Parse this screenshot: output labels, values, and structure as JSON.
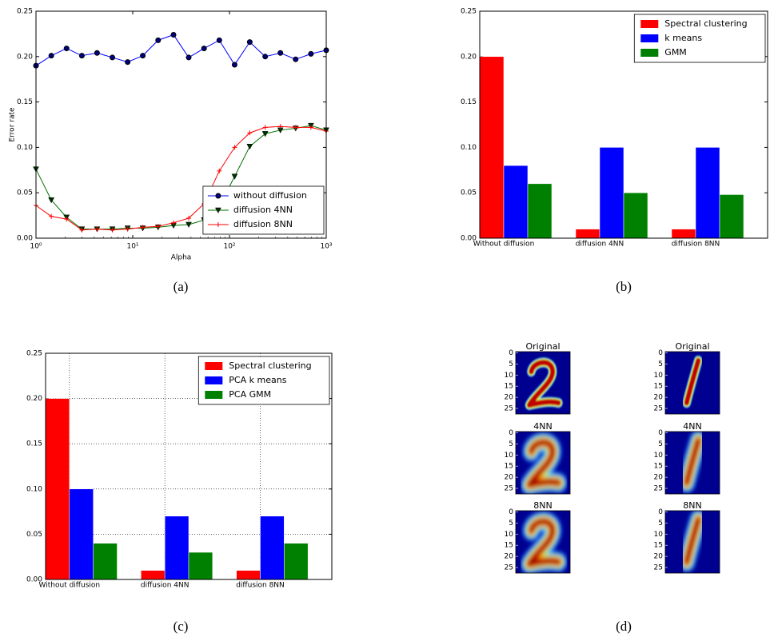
{
  "chart_data": [
    {
      "type": "line",
      "caption": "(a)",
      "x_label": "Alpha",
      "y_label": "Error rate",
      "xlog": true,
      "x": [
        1,
        1.44,
        2.07,
        2.98,
        4.28,
        6.16,
        8.86,
        12.7,
        18.3,
        26.4,
        37.9,
        54.6,
        78.5,
        113,
        162,
        234,
        336,
        483,
        695,
        1000
      ],
      "xlim": [
        1,
        1000
      ],
      "xticks": [
        {
          "value": 1,
          "label": "10⁰"
        },
        {
          "value": 10,
          "label": "10¹"
        },
        {
          "value": 100,
          "label": "10²"
        },
        {
          "value": 1000,
          "label": "10³"
        }
      ],
      "ylim": [
        0,
        0.25
      ],
      "yticks": [
        {
          "value": 0,
          "label": "0.00"
        },
        {
          "value": 0.05,
          "label": "0.05"
        },
        {
          "value": 0.1,
          "label": "0.10"
        },
        {
          "value": 0.15,
          "label": "0.15"
        },
        {
          "value": 0.2,
          "label": "0.20"
        },
        {
          "value": 0.25,
          "label": "0.25"
        }
      ],
      "legend": "lower right",
      "grid": false,
      "series": [
        {
          "name": "without diffusion",
          "color": "#0000ff",
          "marker": "o",
          "values": [
            0.19,
            0.201,
            0.209,
            0.201,
            0.204,
            0.199,
            0.194,
            0.201,
            0.218,
            0.224,
            0.199,
            0.209,
            0.218,
            0.191,
            0.216,
            0.2,
            0.204,
            0.197,
            0.203,
            0.207
          ]
        },
        {
          "name": "diffusion 4NN",
          "color": "#007000",
          "marker": "v",
          "values": [
            0.076,
            0.042,
            0.023,
            0.01,
            0.01,
            0.01,
            0.011,
            0.011,
            0.012,
            0.014,
            0.015,
            0.02,
            0.035,
            0.068,
            0.101,
            0.115,
            0.119,
            0.121,
            0.124,
            0.119
          ]
        },
        {
          "name": "diffusion 8NN",
          "color": "#ff0000",
          "marker": "+",
          "values": [
            0.036,
            0.024,
            0.021,
            0.009,
            0.01,
            0.009,
            0.01,
            0.012,
            0.013,
            0.017,
            0.022,
            0.038,
            0.074,
            0.1,
            0.116,
            0.122,
            0.123,
            0.122,
            0.122,
            0.118
          ]
        }
      ]
    },
    {
      "type": "bar",
      "caption": "(b)",
      "categories": [
        "Without diffusion",
        "diffusion 4NN",
        "diffusion 8NN"
      ],
      "ylim": [
        0,
        0.25
      ],
      "yticks": [
        {
          "value": 0,
          "label": "0.00"
        },
        {
          "value": 0.05,
          "label": "0.05"
        },
        {
          "value": 0.1,
          "label": "0.10"
        },
        {
          "value": 0.15,
          "label": "0.15"
        },
        {
          "value": 0.2,
          "label": "0.20"
        },
        {
          "value": 0.25,
          "label": "0.25"
        }
      ],
      "legend": "upper right",
      "grid": false,
      "series": [
        {
          "name": "Spectral clustering",
          "color": "#ff0000",
          "values": [
            0.2,
            0.01,
            0.01
          ]
        },
        {
          "name": "k means",
          "color": "#0000ff",
          "values": [
            0.08,
            0.1,
            0.1
          ]
        },
        {
          "name": "GMM",
          "color": "#008000",
          "values": [
            0.06,
            0.05,
            0.048
          ]
        }
      ]
    },
    {
      "type": "bar",
      "caption": "(c)",
      "categories": [
        "Without diffusion",
        "diffusion 4NN",
        "diffusion 8NN"
      ],
      "ylim": [
        0,
        0.25
      ],
      "yticks": [
        {
          "value": 0,
          "label": "0.00"
        },
        {
          "value": 0.05,
          "label": "0.05"
        },
        {
          "value": 0.1,
          "label": "0.10"
        },
        {
          "value": 0.15,
          "label": "0.15"
        },
        {
          "value": 0.2,
          "label": "0.20"
        },
        {
          "value": 0.25,
          "label": "0.25"
        }
      ],
      "legend": "upper right",
      "grid": true,
      "series": [
        {
          "name": "Spectral clustering",
          "color": "#ff0000",
          "values": [
            0.2,
            0.01,
            0.01
          ]
        },
        {
          "name": "PCA k means",
          "color": "#0000ff",
          "values": [
            0.1,
            0.07,
            0.07
          ]
        },
        {
          "name": "PCA GMM",
          "color": "#008000",
          "values": [
            0.04,
            0.03,
            0.04
          ]
        }
      ]
    },
    {
      "type": "image",
      "caption": "(d)",
      "ylim": [
        -0.5,
        27.5
      ],
      "yticks": [
        0,
        5,
        10,
        15,
        20,
        25
      ],
      "panels": [
        {
          "title": "Original"
        },
        {
          "title": "Original"
        },
        {
          "title": "4NN"
        },
        {
          "title": "4NN"
        },
        {
          "title": "8NN"
        },
        {
          "title": "8NN"
        }
      ]
    }
  ]
}
